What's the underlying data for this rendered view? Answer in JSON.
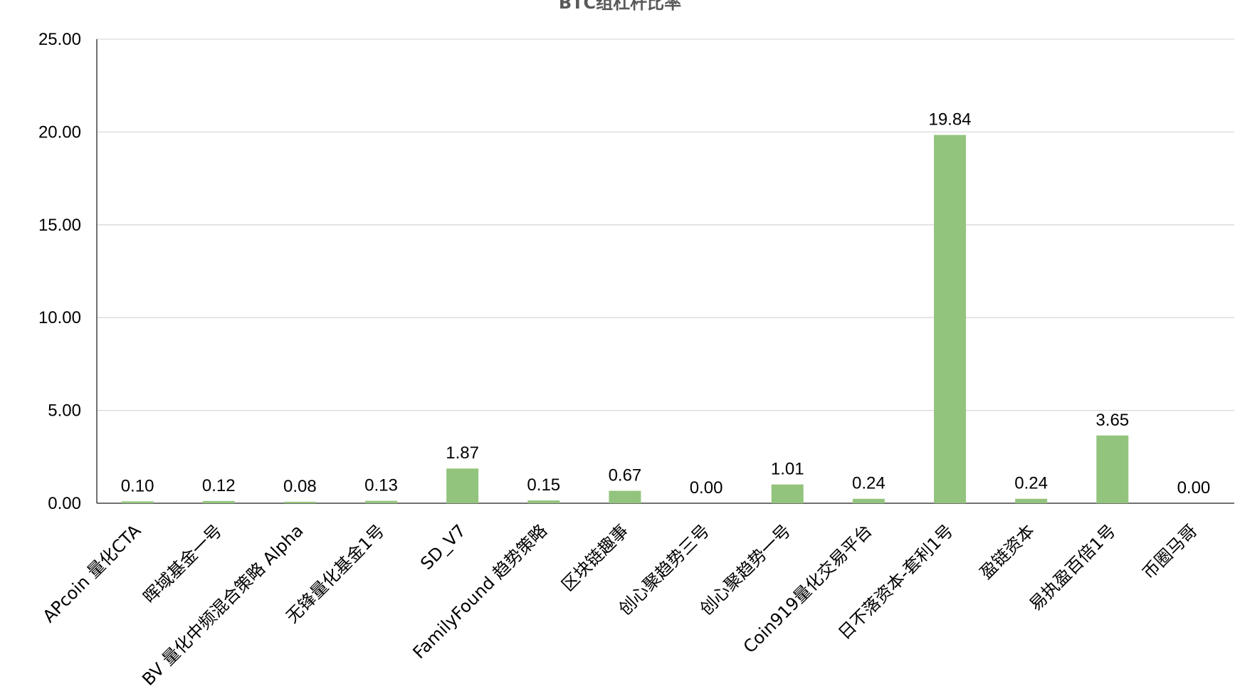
{
  "chart_data": {
    "type": "bar",
    "title": "BTC组杠杆比率",
    "categories": [
      "APcoin 量化CTA",
      "晖域基金一号",
      "BV 量化中频混合策略 Alpha",
      "无锋量化基金1号",
      "SD_V7",
      "FamilyFound 趋势策略",
      "区块链趣事",
      "创心聚趋势三号",
      "创心聚趋势一号",
      "Coin919量化交易平台",
      "日不落资本-套利1号",
      "盈链资本",
      "易执盈百倍1号",
      "币圈马哥"
    ],
    "values": [
      0.1,
      0.12,
      0.08,
      0.13,
      1.87,
      0.15,
      0.67,
      0.0,
      1.01,
      0.24,
      19.84,
      0.24,
      3.65,
      0.0
    ],
    "data_labels": [
      "0.10",
      "0.12",
      "0.08",
      "0.13",
      "1.87",
      "0.15",
      "0.67",
      "0.00",
      "1.01",
      "0.24",
      "19.84",
      "0.24",
      "3.65",
      "0.00"
    ],
    "ylim": [
      0,
      25
    ],
    "yticks": [
      "0.00",
      "5.00",
      "10.00",
      "15.00",
      "20.00",
      "25.00"
    ],
    "xlabel": "",
    "ylabel": "",
    "grid": true,
    "bar_color": "#93C47D",
    "grid_color": "#D9D9D9",
    "axis_color": "#404040"
  }
}
